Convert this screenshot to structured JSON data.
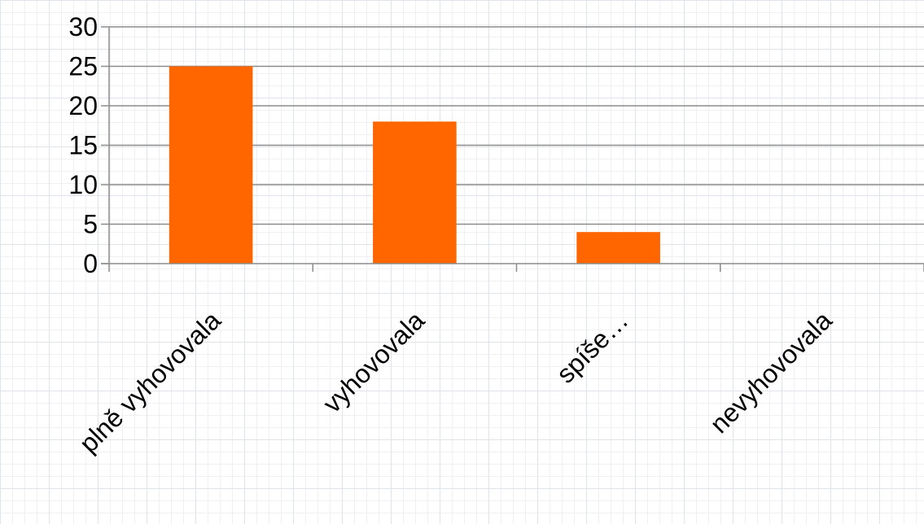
{
  "chart_data": {
    "type": "bar",
    "categories": [
      "plně vyhovovala",
      "vyhovovala",
      "spíše…",
      "nevyhovovala"
    ],
    "values": [
      25,
      18,
      4,
      0
    ],
    "yticks": [
      "0",
      "5",
      "10",
      "15",
      "20",
      "25",
      "30"
    ],
    "ylim": [
      0,
      30
    ],
    "grid": true,
    "legend": "none",
    "bar_color": "#ff6600",
    "gridline_color": "#8c8c8c"
  }
}
